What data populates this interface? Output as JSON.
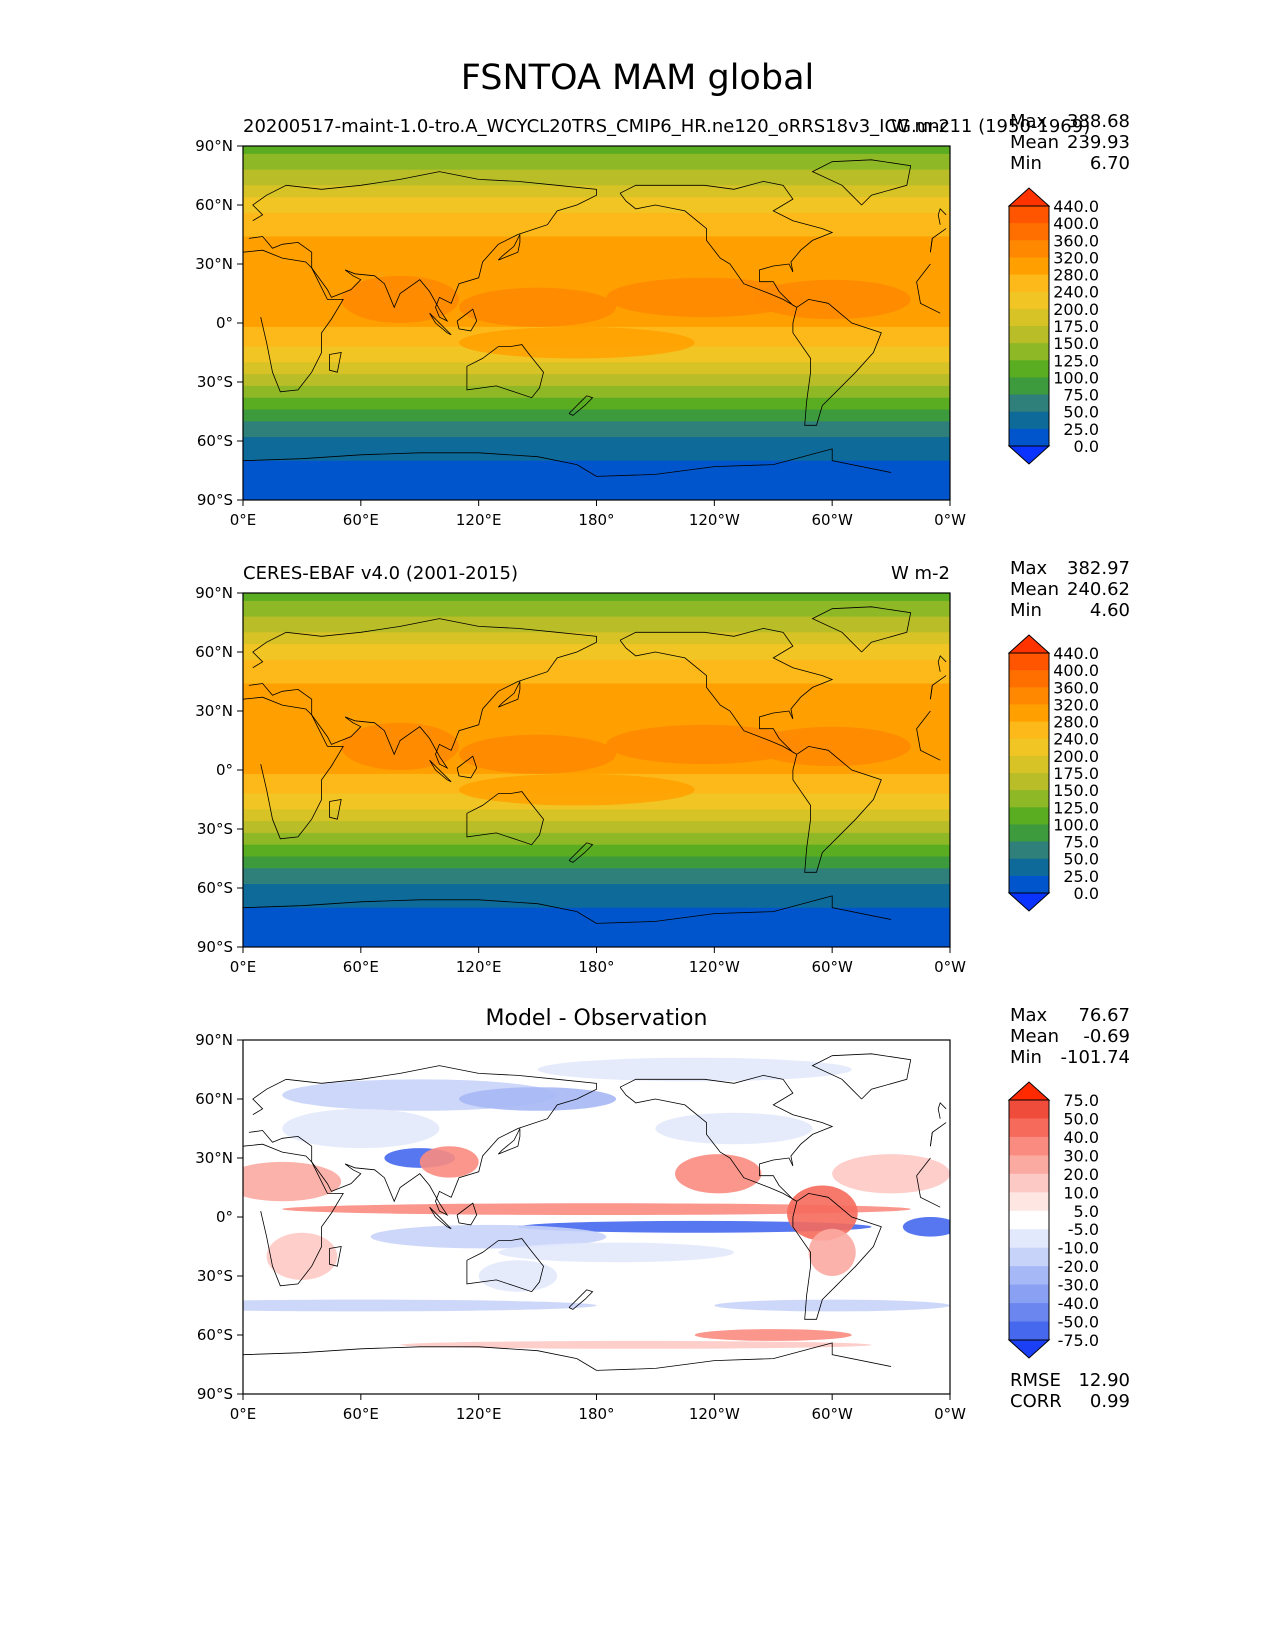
{
  "suptitle": "FSNTOA MAM global",
  "chart_data": [
    {
      "type": "heatmap",
      "id": "model",
      "title_left": "20200517-maint-1.0-tro.A_WCYCL20TRS_CMIP6_HR.ne120_oRRS18v3_ICG.unc11 (1950-1969)",
      "title_center": "",
      "title_right": "W m-2",
      "stats": {
        "max_label": "Max",
        "max": "388.68",
        "mean_label": "Mean",
        "mean": "239.93",
        "min_label": "Min",
        "min": "6.70"
      },
      "xticks": [
        "0°E",
        "60°E",
        "120°E",
        "180°",
        "120°W",
        "60°W",
        "0°W"
      ],
      "yticks": [
        "90°N",
        "60°N",
        "30°N",
        "0°",
        "30°S",
        "60°S",
        "90°S"
      ],
      "colorbar": {
        "levels": [
          "440.0",
          "400.0",
          "360.0",
          "320.0",
          "280.0",
          "240.0",
          "200.0",
          "175.0",
          "150.0",
          "125.0",
          "100.0",
          "75.0",
          "50.0",
          "25.0",
          "0.0"
        ],
        "colors": [
          "#ff3300",
          "#ff5500",
          "#ff6f00",
          "#ff8800",
          "#ffa000",
          "#fdb91a",
          "#f1c523",
          "#d8c327",
          "#b8bd28",
          "#8fb826",
          "#5aad21",
          "#3d9a3d",
          "#2f7f7a",
          "#0e6b99",
          "#0055cc",
          "#0a33ff"
        ]
      },
      "lat_profile_values": [
        110,
        140,
        175,
        220,
        260,
        295,
        300,
        305,
        300,
        285,
        250,
        200,
        160,
        115,
        75,
        40,
        25,
        20
      ],
      "lat_profile_lats": [
        90,
        80,
        70,
        60,
        50,
        40,
        30,
        20,
        10,
        0,
        -10,
        -20,
        -30,
        -40,
        -50,
        -60,
        -70,
        -90
      ],
      "stats_extra": null
    },
    {
      "type": "heatmap",
      "id": "obs",
      "title_left": "CERES-EBAF v4.0 (2001-2015)",
      "title_center": "",
      "title_right": "W m-2",
      "stats": {
        "max_label": "Max",
        "max": "382.97",
        "mean_label": "Mean",
        "mean": "240.62",
        "min_label": "Min",
        "min": "4.60"
      },
      "xticks": [
        "0°E",
        "60°E",
        "120°E",
        "180°",
        "120°W",
        "60°W",
        "0°W"
      ],
      "yticks": [
        "90°N",
        "60°N",
        "30°N",
        "0°",
        "30°S",
        "60°S",
        "90°S"
      ],
      "colorbar": {
        "levels": [
          "440.0",
          "400.0",
          "360.0",
          "320.0",
          "280.0",
          "240.0",
          "200.0",
          "175.0",
          "150.0",
          "125.0",
          "100.0",
          "75.0",
          "50.0",
          "25.0",
          "0.0"
        ],
        "colors": [
          "#ff3300",
          "#ff5500",
          "#ff6f00",
          "#ff8800",
          "#ffa000",
          "#fdb91a",
          "#f1c523",
          "#d8c327",
          "#b8bd28",
          "#8fb826",
          "#5aad21",
          "#3d9a3d",
          "#2f7f7a",
          "#0e6b99",
          "#0055cc",
          "#0a33ff"
        ]
      },
      "lat_profile_values": [
        110,
        140,
        175,
        220,
        260,
        290,
        300,
        305,
        300,
        285,
        250,
        200,
        160,
        115,
        75,
        40,
        25,
        20
      ],
      "lat_profile_lats": [
        90,
        80,
        70,
        60,
        50,
        40,
        30,
        20,
        10,
        0,
        -10,
        -20,
        -30,
        -40,
        -50,
        -60,
        -70,
        -90
      ],
      "stats_extra": null
    },
    {
      "type": "heatmap",
      "id": "diff",
      "title_left": "",
      "title_center": "Model - Observation",
      "title_right": "",
      "stats": {
        "max_label": "Max",
        "max": "76.67",
        "mean_label": "Mean",
        "mean": "-0.69",
        "min_label": "Min",
        "min": "-101.74"
      },
      "xticks": [
        "0°E",
        "60°E",
        "120°E",
        "180°",
        "120°W",
        "60°W",
        "0°W"
      ],
      "yticks": [
        "90°N",
        "60°N",
        "30°N",
        "0°",
        "30°S",
        "60°S",
        "90°S"
      ],
      "colorbar": {
        "levels": [
          "75.0",
          "50.0",
          "40.0",
          "30.0",
          "20.0",
          "10.0",
          "5.0",
          "-5.0",
          "-10.0",
          "-20.0",
          "-30.0",
          "-40.0",
          "-50.0",
          "-75.0"
        ],
        "colors": [
          "#ff2a00",
          "#f04c3b",
          "#f66a5c",
          "#f98b80",
          "#fbaaa2",
          "#fdc9c4",
          "#fee6e3",
          "#ffffff",
          "#e3e9fc",
          "#c8d3fa",
          "#a6b8f5",
          "#8aa0f2",
          "#6b86ef",
          "#4568ee",
          "#1a3ff5"
        ]
      },
      "stats_extra": {
        "rmse_label": "RMSE",
        "rmse": "12.90",
        "corr_label": "CORR",
        "corr": "0.99"
      }
    }
  ]
}
